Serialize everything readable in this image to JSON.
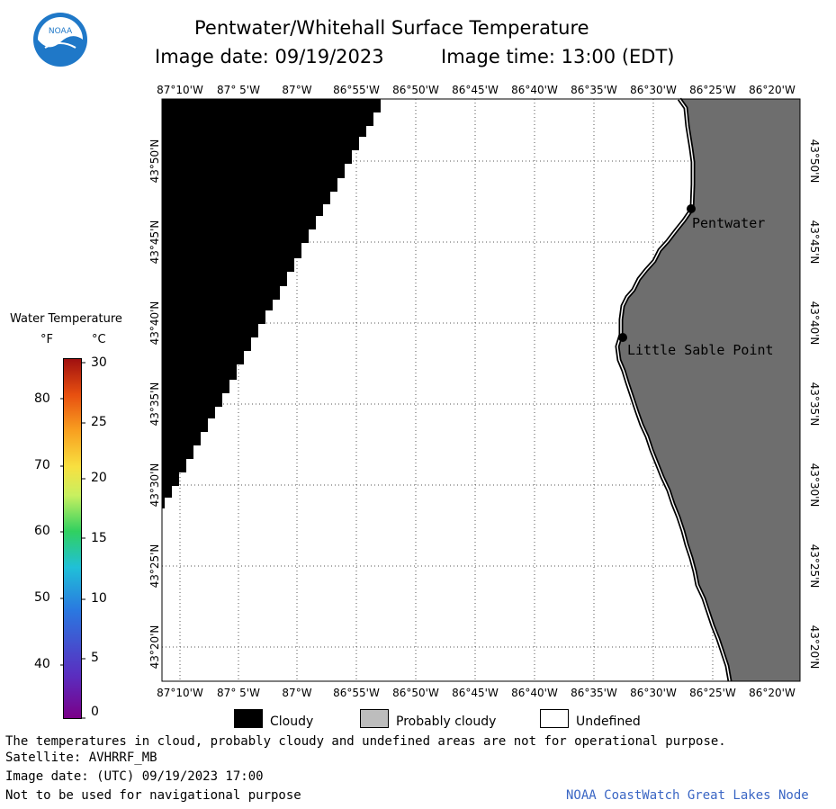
{
  "header": {
    "title": "Pentwater/Whitehall Surface Temperature",
    "image_date_line": "Image date: 09/19/2023",
    "image_time_line": "Image time: 13:00 (EDT)"
  },
  "logo": {
    "text": "NOAA",
    "color": "#1f78c8"
  },
  "map": {
    "lon_labels": [
      "87°10'W",
      "87° 5'W",
      "87°W",
      "86°55'W",
      "86°50'W",
      "86°45'W",
      "86°40'W",
      "86°35'W",
      "86°30'W",
      "86°25'W",
      "86°20'W"
    ],
    "lat_labels": [
      "43°50'N",
      "43°45'N",
      "43°40'N",
      "43°35'N",
      "43°30'N",
      "43°25'N",
      "43°20'N"
    ],
    "places": [
      {
        "name": "Pentwater"
      },
      {
        "name": "Little Sable Point"
      }
    ],
    "colors": {
      "cloudy": "#000000",
      "land": "#6e6e6e",
      "undefined": "#ffffff"
    }
  },
  "colorbar": {
    "title": "Water Temperature",
    "unit_f": "°F",
    "unit_c": "°C",
    "f_ticks": [
      "80",
      "70",
      "60",
      "50",
      "40"
    ],
    "c_ticks": [
      "30",
      "25",
      "20",
      "15",
      "10",
      "5",
      "0"
    ]
  },
  "legend": {
    "items": [
      {
        "label": "Cloudy",
        "color": "#000000"
      },
      {
        "label": "Probably cloudy",
        "color": "#bdbdbd"
      },
      {
        "label": "Undefined",
        "color": "#ffffff"
      }
    ]
  },
  "footer": {
    "line1": "The temperatures in cloud, probably cloudy and undefined areas are not for operational purpose.",
    "line2": "Satellite: AVHRRF_MB",
    "line3": "Image date: (UTC) 09/19/2023  17:00",
    "line4": "Not to be used for navigational purpose",
    "credit": "NOAA CoastWatch Great Lakes Node",
    "credit_color": "#3a66c4"
  }
}
